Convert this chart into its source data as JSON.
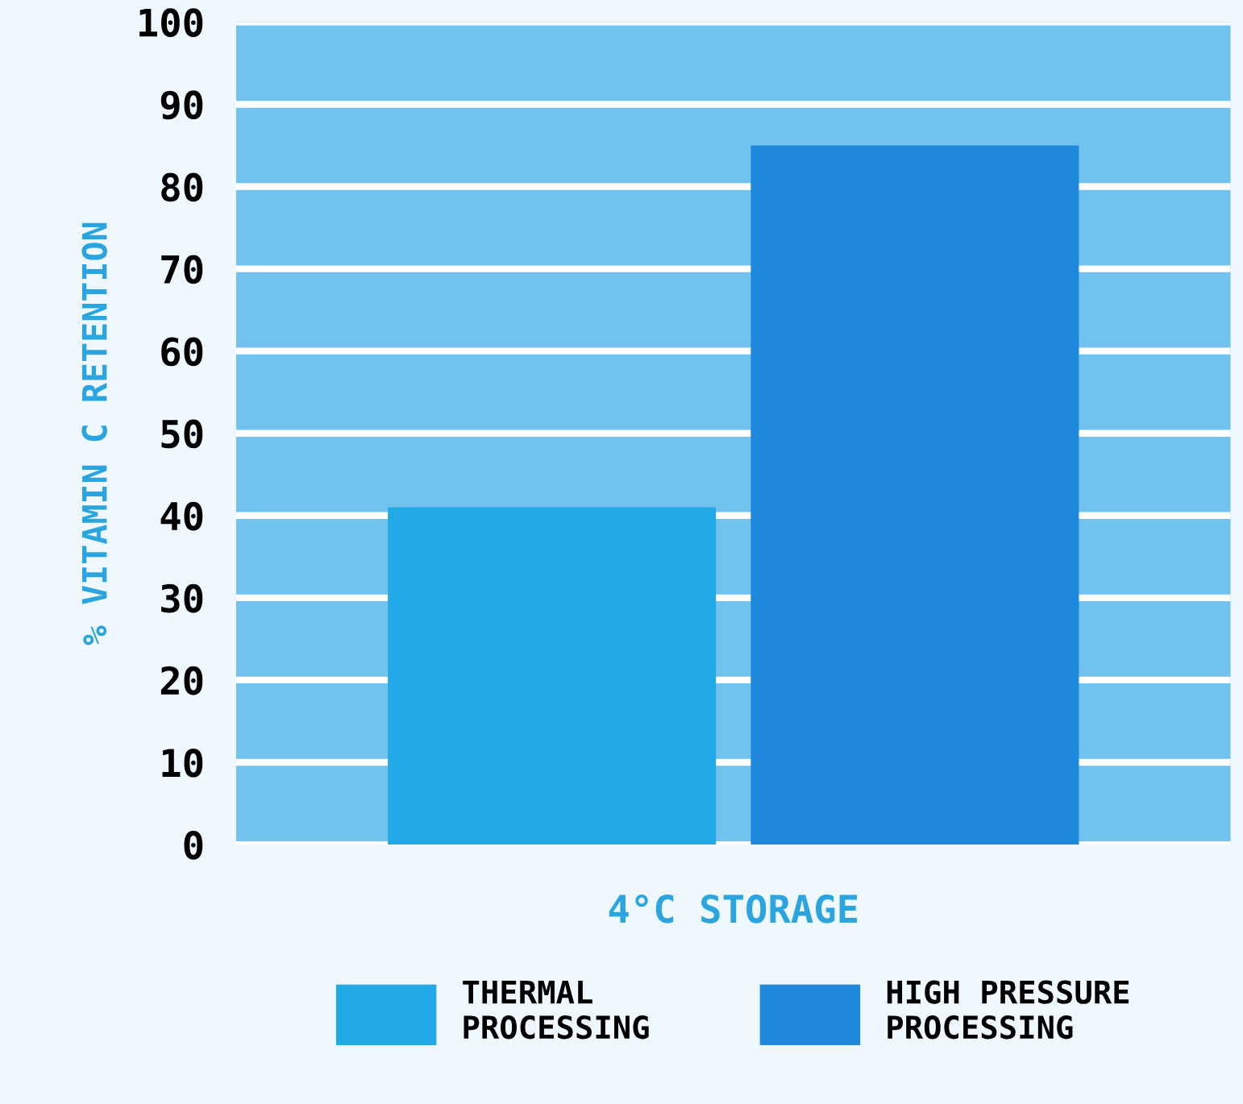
{
  "chart_data": {
    "type": "bar",
    "ylabel": "% VITAMIN C RETENTION",
    "categories": [
      "4°C STORAGE"
    ],
    "series": [
      {
        "name": "THERMAL\nPROCESSING",
        "color": "#22aae8",
        "values": [
          41
        ]
      },
      {
        "name": "HIGH PRESSURE\nPROCESSING",
        "color": "#1e88dc",
        "values": [
          85
        ]
      }
    ],
    "ylim": [
      0,
      100
    ],
    "yticks": [
      0,
      10,
      20,
      30,
      40,
      50,
      60,
      70,
      80,
      90,
      100
    ],
    "grid": "y",
    "legend": "bottom"
  }
}
